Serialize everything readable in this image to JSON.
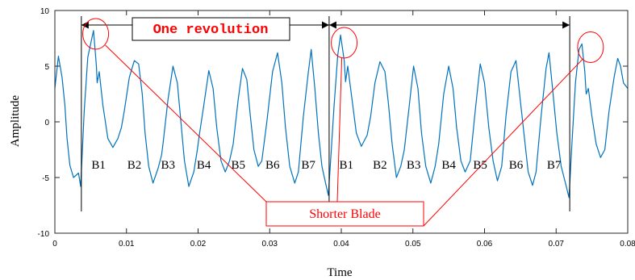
{
  "chart_data": {
    "type": "line",
    "xlabel": "Time",
    "ylabel": "Amplitude",
    "xlim": [
      0,
      0.08
    ],
    "ylim": [
      -10,
      10
    ],
    "x_ticks": [
      0,
      0.01,
      0.02,
      0.03,
      0.04,
      0.05,
      0.06,
      0.07,
      0.08
    ],
    "x_tick_labels": [
      "0",
      "0.01",
      "0.02",
      "0.03",
      "0.04",
      "0.05",
      "0.06",
      "0.07",
      "0.08"
    ],
    "y_ticks": [
      -10,
      -5,
      0,
      5,
      10
    ],
    "y_tick_labels": [
      "-10",
      "-5",
      "0",
      "5",
      "10"
    ],
    "grid": false,
    "series": [
      {
        "color": "#0072bd",
        "points": [
          [
            0.0,
            3.0
          ],
          [
            0.0005,
            5.9
          ],
          [
            0.001,
            4.0
          ],
          [
            0.0014,
            1.5
          ],
          [
            0.0017,
            -1.5
          ],
          [
            0.0021,
            -3.9
          ],
          [
            0.0026,
            -5.0
          ],
          [
            0.0033,
            -4.6
          ],
          [
            0.0036,
            -5.8
          ],
          [
            0.0041,
            1.0
          ],
          [
            0.0046,
            5.8
          ],
          [
            0.0054,
            8.2
          ],
          [
            0.0058,
            5.0
          ],
          [
            0.0059,
            3.5
          ],
          [
            0.0062,
            4.5
          ],
          [
            0.0067,
            1.5
          ],
          [
            0.0074,
            -1.5
          ],
          [
            0.0081,
            -2.3
          ],
          [
            0.0088,
            -1.5
          ],
          [
            0.0093,
            -0.5
          ],
          [
            0.0097,
            1.0
          ],
          [
            0.0104,
            4.0
          ],
          [
            0.0111,
            5.5
          ],
          [
            0.0117,
            5.2
          ],
          [
            0.0122,
            2.5
          ],
          [
            0.0126,
            -1.0
          ],
          [
            0.0131,
            -4.0
          ],
          [
            0.0137,
            -5.5
          ],
          [
            0.0144,
            -4.2
          ],
          [
            0.0149,
            -3.0
          ],
          [
            0.0151,
            -2.0
          ],
          [
            0.0158,
            2.0
          ],
          [
            0.0165,
            5.0
          ],
          [
            0.0171,
            3.5
          ],
          [
            0.0176,
            0.0
          ],
          [
            0.0181,
            -3.5
          ],
          [
            0.0187,
            -5.8
          ],
          [
            0.0194,
            -4.5
          ],
          [
            0.0199,
            -2.5
          ],
          [
            0.0201,
            -1.5
          ],
          [
            0.0208,
            1.5
          ],
          [
            0.0215,
            4.6
          ],
          [
            0.0221,
            3.0
          ],
          [
            0.0226,
            -0.5
          ],
          [
            0.0232,
            -3.5
          ],
          [
            0.0238,
            -4.5
          ],
          [
            0.0244,
            -3.5
          ],
          [
            0.0249,
            -2.0
          ],
          [
            0.0256,
            2.0
          ],
          [
            0.0262,
            4.8
          ],
          [
            0.0268,
            3.8
          ],
          [
            0.0273,
            0.5
          ],
          [
            0.0278,
            -2.5
          ],
          [
            0.0284,
            -4.0
          ],
          [
            0.0289,
            -3.5
          ],
          [
            0.0296,
            0.0
          ],
          [
            0.0304,
            4.5
          ],
          [
            0.0311,
            6.2
          ],
          [
            0.0317,
            3.5
          ],
          [
            0.0322,
            -0.5
          ],
          [
            0.0328,
            -4.0
          ],
          [
            0.0335,
            -5.5
          ],
          [
            0.034,
            -4.5
          ],
          [
            0.0347,
            0.5
          ],
          [
            0.0354,
            4.5
          ],
          [
            0.0358,
            6.5
          ],
          [
            0.0363,
            3.0
          ],
          [
            0.0368,
            -1.0
          ],
          [
            0.0373,
            -4.0
          ],
          [
            0.0378,
            -5.5
          ],
          [
            0.0382,
            -6.6
          ],
          [
            0.0386,
            -2.5
          ],
          [
            0.039,
            1.5
          ],
          [
            0.0395,
            6.0
          ],
          [
            0.0399,
            7.8
          ],
          [
            0.0404,
            5.5
          ],
          [
            0.0406,
            3.6
          ],
          [
            0.0409,
            5.0
          ],
          [
            0.0415,
            2.0
          ],
          [
            0.0421,
            -1.0
          ],
          [
            0.0428,
            -2.2
          ],
          [
            0.0436,
            -1.2
          ],
          [
            0.0441,
            0.5
          ],
          [
            0.0447,
            3.5
          ],
          [
            0.0454,
            5.4
          ],
          [
            0.0461,
            4.5
          ],
          [
            0.0466,
            1.5
          ],
          [
            0.0471,
            -2.0
          ],
          [
            0.0477,
            -5.0
          ],
          [
            0.0483,
            -4.0
          ],
          [
            0.0488,
            -2.5
          ],
          [
            0.0495,
            1.5
          ],
          [
            0.0501,
            5.0
          ],
          [
            0.0507,
            3.0
          ],
          [
            0.0512,
            -1.0
          ],
          [
            0.0518,
            -4.0
          ],
          [
            0.0525,
            -5.5
          ],
          [
            0.0531,
            -4.0
          ],
          [
            0.0536,
            -2.0
          ],
          [
            0.0543,
            2.5
          ],
          [
            0.055,
            5.0
          ],
          [
            0.0556,
            3.0
          ],
          [
            0.0561,
            -0.5
          ],
          [
            0.0567,
            -3.5
          ],
          [
            0.0573,
            -4.5
          ],
          [
            0.058,
            -3.5
          ],
          [
            0.0587,
            1.0
          ],
          [
            0.0594,
            5.2
          ],
          [
            0.06,
            3.5
          ],
          [
            0.0606,
            -0.5
          ],
          [
            0.0612,
            -3.5
          ],
          [
            0.0618,
            -5.3
          ],
          [
            0.0624,
            -4.0
          ],
          [
            0.063,
            0.5
          ],
          [
            0.0637,
            4.5
          ],
          [
            0.0644,
            5.5
          ],
          [
            0.0649,
            2.5
          ],
          [
            0.0655,
            -1.0
          ],
          [
            0.0661,
            -4.5
          ],
          [
            0.0667,
            -5.7
          ],
          [
            0.0672,
            -4.5
          ],
          [
            0.0679,
            0.5
          ],
          [
            0.0686,
            4.8
          ],
          [
            0.069,
            6.2
          ],
          [
            0.0695,
            3.0
          ],
          [
            0.0701,
            -1.0
          ],
          [
            0.0707,
            -4.0
          ],
          [
            0.0713,
            -5.5
          ],
          [
            0.0718,
            -6.8
          ],
          [
            0.0722,
            -2.0
          ],
          [
            0.0727,
            3.5
          ],
          [
            0.0732,
            6.5
          ],
          [
            0.0736,
            7.0
          ],
          [
            0.074,
            4.5
          ],
          [
            0.0742,
            2.5
          ],
          [
            0.0745,
            3.0
          ],
          [
            0.075,
            0.5
          ],
          [
            0.0756,
            -2.0
          ],
          [
            0.0762,
            -3.2
          ],
          [
            0.0768,
            -2.5
          ],
          [
            0.0774,
            1.0
          ],
          [
            0.0781,
            4.0
          ],
          [
            0.0786,
            5.7
          ],
          [
            0.079,
            5.0
          ],
          [
            0.0794,
            3.5
          ],
          [
            0.08,
            3.0
          ]
        ]
      }
    ],
    "annotations": {
      "revolution_label": "One revolution",
      "shorter_blade_label": "Shorter Blade",
      "revolution_markers_x": [
        0.0037,
        0.0383,
        0.0719
      ],
      "blade_labels": [
        "B1",
        "B2",
        "B3",
        "B4",
        "B5",
        "B6",
        "B7",
        "B1",
        "B2",
        "B3",
        "B4",
        "B5",
        "B6",
        "B7"
      ],
      "blade_labels_x": [
        0.0061,
        0.0111,
        0.0158,
        0.0208,
        0.0256,
        0.0304,
        0.0354,
        0.0407,
        0.0454,
        0.0501,
        0.055,
        0.0594,
        0.0644,
        0.0697
      ],
      "blade_labels_y": -4.2,
      "shorter_blade_circles": [
        [
          0.0057,
          7.9
        ],
        [
          0.0404,
          7.1
        ],
        [
          0.0748,
          6.7
        ]
      ]
    }
  }
}
